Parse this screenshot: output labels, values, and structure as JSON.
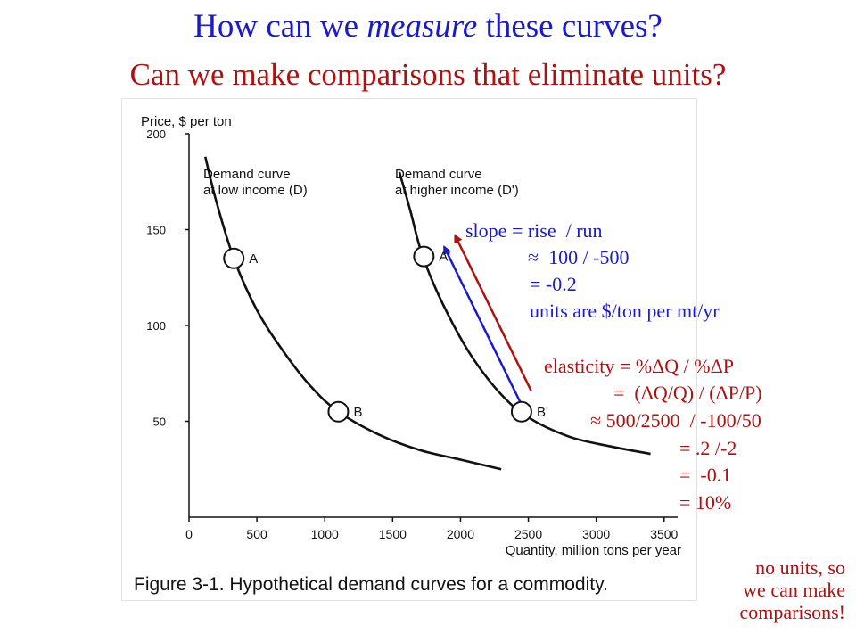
{
  "slide": {
    "title_lead": "How can we ",
    "title_emph": "measure",
    "title_tail": " these curves?",
    "subtitle": "Can we make comparisons that eliminate units?"
  },
  "chart_data": {
    "type": "line",
    "ylabel": "Price, $ per ton",
    "xlabel": "Quantity, million tons per year",
    "caption": "Figure 3-1. Hypothetical demand curves for a commodity.",
    "xlim": [
      0,
      3600
    ],
    "ylim": [
      0,
      200
    ],
    "x_ticks": [
      0,
      500,
      1000,
      1500,
      2000,
      2500,
      3000,
      3500
    ],
    "y_ticks": [
      50,
      100,
      150,
      200
    ],
    "grid": false,
    "series": [
      {
        "name": "Demand curve at low income (D)",
        "label_lines": [
          "Demand curve",
          "at low income (D)"
        ],
        "x": [
          120,
          200,
          330,
          500,
          700,
          900,
          1100,
          1400,
          1700,
          2000,
          2300
        ],
        "y": [
          188,
          165,
          135,
          108,
          86,
          68,
          55,
          43,
          35,
          30,
          25
        ]
      },
      {
        "name": "Demand curve at higher income (D')",
        "label_lines": [
          "Demand curve",
          "at higher income (D')"
        ],
        "x": [
          1550,
          1630,
          1700,
          1800,
          1950,
          2100,
          2300,
          2500,
          2800,
          3100,
          3400
        ],
        "y": [
          180,
          160,
          141,
          122,
          100,
          82,
          64,
          52,
          42,
          37,
          33
        ]
      }
    ],
    "points": [
      {
        "label": "A",
        "x": 330,
        "y": 135
      },
      {
        "label": "B",
        "x": 1100,
        "y": 55
      },
      {
        "label": "A'",
        "x": 1730,
        "y": 136
      },
      {
        "label": "B'",
        "x": 2450,
        "y": 55
      }
    ],
    "arrows": [
      {
        "name": "blue-arrow",
        "color": "#1a1ac8",
        "from": [
          2440,
          60
        ],
        "to": [
          1880,
          141
        ]
      },
      {
        "name": "red-arrow",
        "color": "#b01010",
        "from": [
          2520,
          66
        ],
        "to": [
          1960,
          147
        ]
      }
    ]
  },
  "annotations": {
    "slope": [
      "slope = rise  / run",
      "≈  100 / -500",
      "= -0.2",
      "units are $/ton per mt/yr"
    ],
    "elasticity": [
      "elasticity = %ΔQ / %ΔP",
      "=  (ΔQ/Q) / (ΔP/P)",
      "≈ 500/2500  / -100/50",
      "= .2 /-2",
      "=  -0.1",
      "= 10%"
    ],
    "note": [
      "no units, so",
      "we can make",
      "comparisons!"
    ]
  },
  "colors": {
    "blue": "#1a1ac8",
    "red": "#b01010",
    "ink": "#111111"
  }
}
